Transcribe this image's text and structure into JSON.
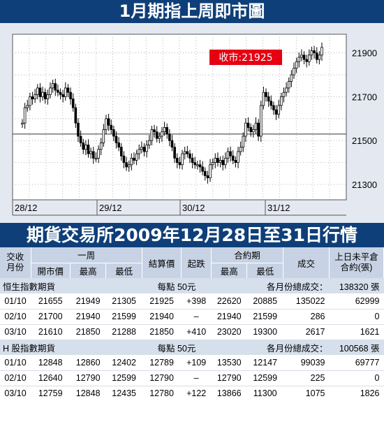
{
  "page_title": "1月期指上周即市圖",
  "table_title": "期貨交易所2009年12月28日至31日行情",
  "chart_data": {
    "type": "candlestick",
    "title": "1月期指上周即市圖",
    "close_label": "收市:21925",
    "y_ticks": [
      21900,
      21700,
      21500,
      21300
    ],
    "ylim": [
      21230,
      21985
    ],
    "x_ticks": [
      "28/12",
      "29/12",
      "30/12",
      "31/12"
    ],
    "reference_line": 21530,
    "close_value": 21925,
    "series_prices": [
      21580,
      21650,
      21660,
      21700,
      21690,
      21710,
      21740,
      21700,
      21720,
      21690,
      21710,
      21740,
      21760,
      21730,
      21720,
      21710,
      21700,
      21740,
      21720,
      21690,
      21650,
      21580,
      21520,
      21490,
      21460,
      21480,
      21440,
      21450,
      21420,
      21420,
      21460,
      21490,
      21550,
      21600,
      21570,
      21550,
      21520,
      21490,
      21470,
      21430,
      21400,
      21380,
      21390,
      21420,
      21410,
      21440,
      21460,
      21470,
      21450,
      21480,
      21500,
      21550,
      21540,
      21510,
      21520,
      21540,
      21560,
      21530,
      21500,
      21470,
      21420,
      21400,
      21390,
      21440,
      21450,
      21440,
      21420,
      21400,
      21390,
      21390,
      21380,
      21360,
      21340,
      21330,
      21390,
      21400,
      21420,
      21400,
      21410,
      21390,
      21420,
      21450,
      21430,
      21410,
      21400,
      21450,
      21470,
      21520,
      21580,
      21560,
      21540,
      21550,
      21580,
      21520,
      21660,
      21720,
      21700,
      21680,
      21660,
      21640,
      21620,
      21660,
      21700,
      21720,
      21740,
      21770,
      21800,
      21830,
      21860,
      21880,
      21890,
      21870,
      21860,
      21890,
      21910,
      21900,
      21870,
      21890,
      21925
    ]
  },
  "table": {
    "headers": {
      "contract": "交收月份",
      "week": "一周",
      "open": "開市價",
      "high": "最高",
      "low": "最低",
      "settle": "結算價",
      "change": "起跌",
      "contract_period": "合約期",
      "cp_high": "最高",
      "cp_low": "最低",
      "volume": "成交",
      "oi": "上日未平倉合約(張)"
    },
    "sections": [
      {
        "name": "恒生指數期貨",
        "point_value": "每點 50元",
        "total_label": "各月份總成交：",
        "total_value": "138320 張",
        "rows": [
          {
            "month": "01/10",
            "open": "21655",
            "high": "21949",
            "low": "21305",
            "settle": "21925",
            "change": "+398",
            "cp_high": "22620",
            "cp_low": "20885",
            "volume": "135022",
            "oi": "62999"
          },
          {
            "month": "02/10",
            "open": "21700",
            "high": "21940",
            "low": "21599",
            "settle": "21940",
            "change": "–",
            "cp_high": "21940",
            "cp_low": "21599",
            "volume": "286",
            "oi": "0"
          },
          {
            "month": "03/10",
            "open": "21610",
            "high": "21850",
            "low": "21288",
            "settle": "21850",
            "change": "+410",
            "cp_high": "23020",
            "cp_low": "19300",
            "volume": "2617",
            "oi": "1621"
          }
        ]
      },
      {
        "name": "H 股指數期貨",
        "point_value": "每點 50元",
        "total_label": "各月份總成交：",
        "total_value": "100568 張",
        "rows": [
          {
            "month": "01/10",
            "open": "12848",
            "high": "12860",
            "low": "12402",
            "settle": "12789",
            "change": "+109",
            "cp_high": "13530",
            "cp_low": "12147",
            "volume": "99039",
            "oi": "69777"
          },
          {
            "month": "02/10",
            "open": "12640",
            "high": "12790",
            "low": "12599",
            "settle": "12790",
            "change": "–",
            "cp_high": "12790",
            "cp_low": "12599",
            "volume": "225",
            "oi": "0"
          },
          {
            "month": "03/10",
            "open": "12759",
            "high": "12848",
            "low": "12435",
            "settle": "12780",
            "change": "+122",
            "cp_high": "13866",
            "cp_low": "11300",
            "volume": "1075",
            "oi": "1826"
          }
        ]
      }
    ]
  },
  "colors": {
    "banner": "#0f3f78",
    "chart_bg": "#e4e9f1",
    "plot_bg": "#ffffff",
    "candle": "#000000",
    "label_bg": "#e60012"
  }
}
